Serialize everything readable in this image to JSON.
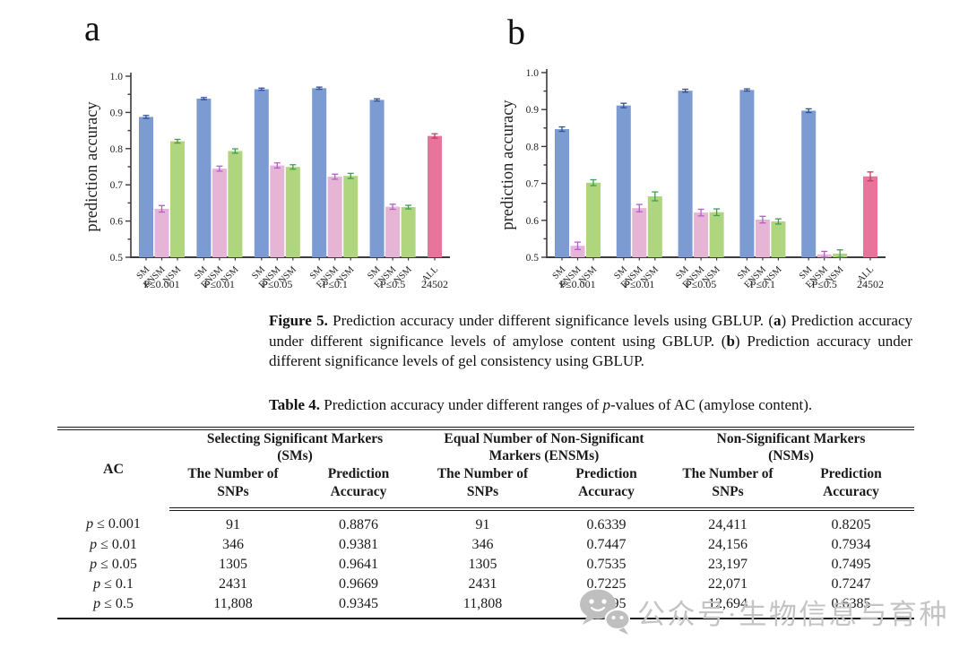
{
  "panels": {
    "a_label": "a",
    "b_label": "b"
  },
  "chart_data": [
    {
      "panel": "a",
      "type": "bar",
      "trait": "amylose content",
      "ylabel": "prediction accuracy",
      "ylim": [
        0.5,
        1.0
      ],
      "ytick_step": 0.1,
      "yminor_step": 0.05,
      "grid": false,
      "legend": "none",
      "bar_labels": [
        "SM",
        "ENSM",
        "NSM"
      ],
      "groups": [
        {
          "label": "P≤0.001",
          "values": [
            0.8876,
            0.6339,
            0.8205
          ],
          "errors": [
            0.004,
            0.009,
            0.005
          ]
        },
        {
          "label": "P≤0.01",
          "values": [
            0.9381,
            0.7447,
            0.7934
          ],
          "errors": [
            0.003,
            0.007,
            0.006
          ]
        },
        {
          "label": "P≤0.05",
          "values": [
            0.9641,
            0.7535,
            0.7495
          ],
          "errors": [
            0.003,
            0.007,
            0.006
          ]
        },
        {
          "label": "P≤0.1",
          "values": [
            0.9669,
            0.7225,
            0.7247
          ],
          "errors": [
            0.003,
            0.007,
            0.007
          ]
        },
        {
          "label": "P≤0.5",
          "values": [
            0.9345,
            0.6395,
            0.6385
          ],
          "errors": [
            0.003,
            0.007,
            0.005
          ]
        }
      ],
      "all_bar": {
        "label": "ALL",
        "group_label": "24502",
        "value": 0.835,
        "error": 0.006
      }
    },
    {
      "panel": "b",
      "type": "bar",
      "trait": "gel consistency",
      "ylabel": "prediction accuracy",
      "ylim": [
        0.5,
        1.0
      ],
      "ytick_step": 0.1,
      "yminor_step": 0.05,
      "grid": false,
      "legend": "none",
      "bar_labels": [
        "SM",
        "ENSM",
        "NSM"
      ],
      "groups": [
        {
          "label": "P≤0.001",
          "values": [
            0.847,
            0.531,
            0.702
          ],
          "errors": [
            0.006,
            0.01,
            0.008
          ]
        },
        {
          "label": "P≤0.01",
          "values": [
            0.911,
            0.633,
            0.665
          ],
          "errors": [
            0.006,
            0.01,
            0.012
          ]
        },
        {
          "label": "P≤0.05",
          "values": [
            0.951,
            0.621,
            0.622
          ],
          "errors": [
            0.004,
            0.009,
            0.009
          ]
        },
        {
          "label": "P≤0.1",
          "values": [
            0.953,
            0.602,
            0.597
          ],
          "errors": [
            0.003,
            0.009,
            0.007
          ]
        },
        {
          "label": "P≤0.5",
          "values": [
            0.897,
            0.508,
            0.51
          ],
          "errors": [
            0.005,
            0.008,
            0.01
          ]
        }
      ],
      "all_bar": {
        "label": "ALL",
        "group_label": "24502",
        "value": 0.719,
        "error": 0.012
      }
    }
  ],
  "colors": {
    "sm_bar": "#7B9BD2",
    "ensm_bar": "#E6B4D5",
    "nsm_bar": "#AFD57E",
    "all_bar": "#E8749B",
    "sm_err": "#33518F",
    "ensm_err": "#B55FC6",
    "nsm_err": "#3E9E55",
    "all_err": "#C23B62",
    "axis": "#3b3b3b"
  },
  "figure_caption": {
    "parts": [
      {
        "t": "Figure 5. ",
        "b": true
      },
      {
        "t": "Prediction accuracy under different significance levels using GBLUP. (",
        "b": false
      },
      {
        "t": "a",
        "b": true
      },
      {
        "t": ") Prediction accuracy under different significance levels of amylose content using GBLUP. (",
        "b": false
      },
      {
        "t": "b",
        "b": true
      },
      {
        "t": ") Prediction accuracy under different significance levels of gel consistency using GBLUP.",
        "b": false
      }
    ]
  },
  "table": {
    "caption": {
      "label": "Table 4.",
      "pre": " Prediction accuracy under different ranges of ",
      "italic": "p",
      "post": "-values of AC (amylose content)."
    },
    "ac_header": "AC",
    "group_headers": [
      {
        "line1": "Selecting Significant Markers",
        "line2": "(SMs)"
      },
      {
        "line1": "Equal Number of Non-Significant",
        "line2": "Markers (ENSMs)"
      },
      {
        "line1": "Non-Significant Markers",
        "line2": "(NSMs)"
      }
    ],
    "subheaders": [
      {
        "line1": "The Number of",
        "line2": "SNPs"
      },
      {
        "line1": "Prediction",
        "line2": "Accuracy"
      }
    ],
    "rows": [
      {
        "p": "p",
        "cond": "≤ 0.001",
        "cells": [
          "91",
          "0.8876",
          "91",
          "0.6339",
          "24,411",
          "0.8205"
        ]
      },
      {
        "p": "p",
        "cond": "≤ 0.01",
        "cells": [
          "346",
          "0.9381",
          "346",
          "0.7447",
          "24,156",
          "0.7934"
        ]
      },
      {
        "p": "p",
        "cond": "≤ 0.05",
        "cells": [
          "1305",
          "0.9641",
          "1305",
          "0.7535",
          "23,197",
          "0.7495"
        ]
      },
      {
        "p": "p",
        "cond": "≤ 0.1",
        "cells": [
          "2431",
          "0.9669",
          "2431",
          "0.7225",
          "22,071",
          "0.7247"
        ]
      },
      {
        "p": "p",
        "cond": "≤ 0.5",
        "cells": [
          "11,808",
          "0.9345",
          "11,808",
          "0.6395",
          "12,694",
          "0.6385"
        ]
      }
    ]
  },
  "watermark": {
    "text": "公众号·生物信息与育种",
    "icon": "wechat-chat-bubbles-icon"
  }
}
